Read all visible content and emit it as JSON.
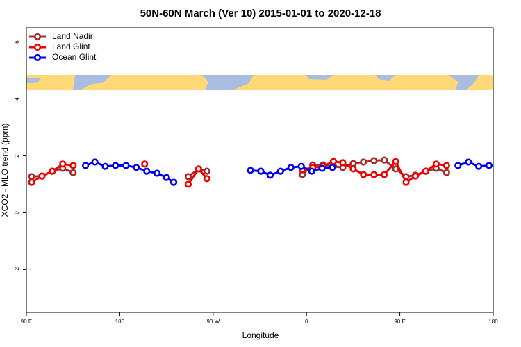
{
  "chart_data": {
    "type": "line",
    "title": "50N-60N March (Ver 10)   2015-01-01 to 2020-12-18",
    "x_label": "Longitude",
    "y_label": "XCO2 - MLO trend (ppm)",
    "xlim": [
      90,
      540
    ],
    "ylim": [
      -3.5,
      6.5
    ],
    "xticks": [
      {
        "value": 90,
        "label": "90 E"
      },
      180,
      {
        "value": 270,
        "label": "90 W"
      },
      {
        "value": 360,
        "label": "0"
      },
      {
        "value": 450,
        "label": "90 E"
      },
      {
        "value": 540,
        "label": "180"
      }
    ],
    "yticks": [
      -2,
      0,
      2,
      4,
      6
    ],
    "legend": "top-left",
    "series": [
      {
        "name": "Land Nadir",
        "color": "#a52a2a",
        "x": [
          95,
          105,
          115,
          125,
          135,
          null,
          246,
          256,
          264,
          null,
          356,
          366,
          376,
          386,
          395,
          405,
          415,
          425,
          435,
          446,
          456,
          465,
          475,
          485,
          495
        ],
        "values": [
          1.27,
          1.29,
          1.46,
          1.56,
          1.41,
          null,
          1.27,
          1.54,
          1.46,
          null,
          1.34,
          1.68,
          1.68,
          1.63,
          1.59,
          1.73,
          1.78,
          1.83,
          1.85,
          1.54,
          1.27,
          1.32,
          1.46,
          1.56,
          1.41
        ]
      },
      {
        "name": "Land Glint",
        "color": "#ee0000",
        "x": [
          95,
          105,
          115,
          125,
          135,
          null,
          204,
          null,
          246,
          256,
          264,
          null,
          356,
          366,
          376,
          386,
          395,
          405,
          415,
          425,
          435,
          446,
          456,
          465,
          475,
          485,
          495
        ],
        "values": [
          1.07,
          1.29,
          1.46,
          1.71,
          1.66,
          null,
          1.71,
          null,
          1.0,
          1.54,
          1.2,
          null,
          1.51,
          1.59,
          1.63,
          1.8,
          1.76,
          1.54,
          1.34,
          1.34,
          1.34,
          1.8,
          1.07,
          1.29,
          1.46,
          1.71,
          1.66
        ]
      },
      {
        "name": "Ocean Glint",
        "color": "#0000ee",
        "x": [
          147,
          156,
          166,
          176,
          186,
          196,
          206,
          216,
          225,
          232,
          null,
          306,
          316,
          325,
          335,
          345,
          355,
          365,
          375,
          385,
          null,
          506,
          516,
          526,
          536
        ],
        "values": [
          1.66,
          1.78,
          1.63,
          1.66,
          1.66,
          1.59,
          1.46,
          1.39,
          1.24,
          1.07,
          null,
          1.49,
          1.46,
          1.32,
          1.46,
          1.59,
          1.63,
          1.46,
          1.56,
          1.59,
          null,
          1.66,
          1.78,
          1.63,
          1.66
        ]
      }
    ]
  }
}
